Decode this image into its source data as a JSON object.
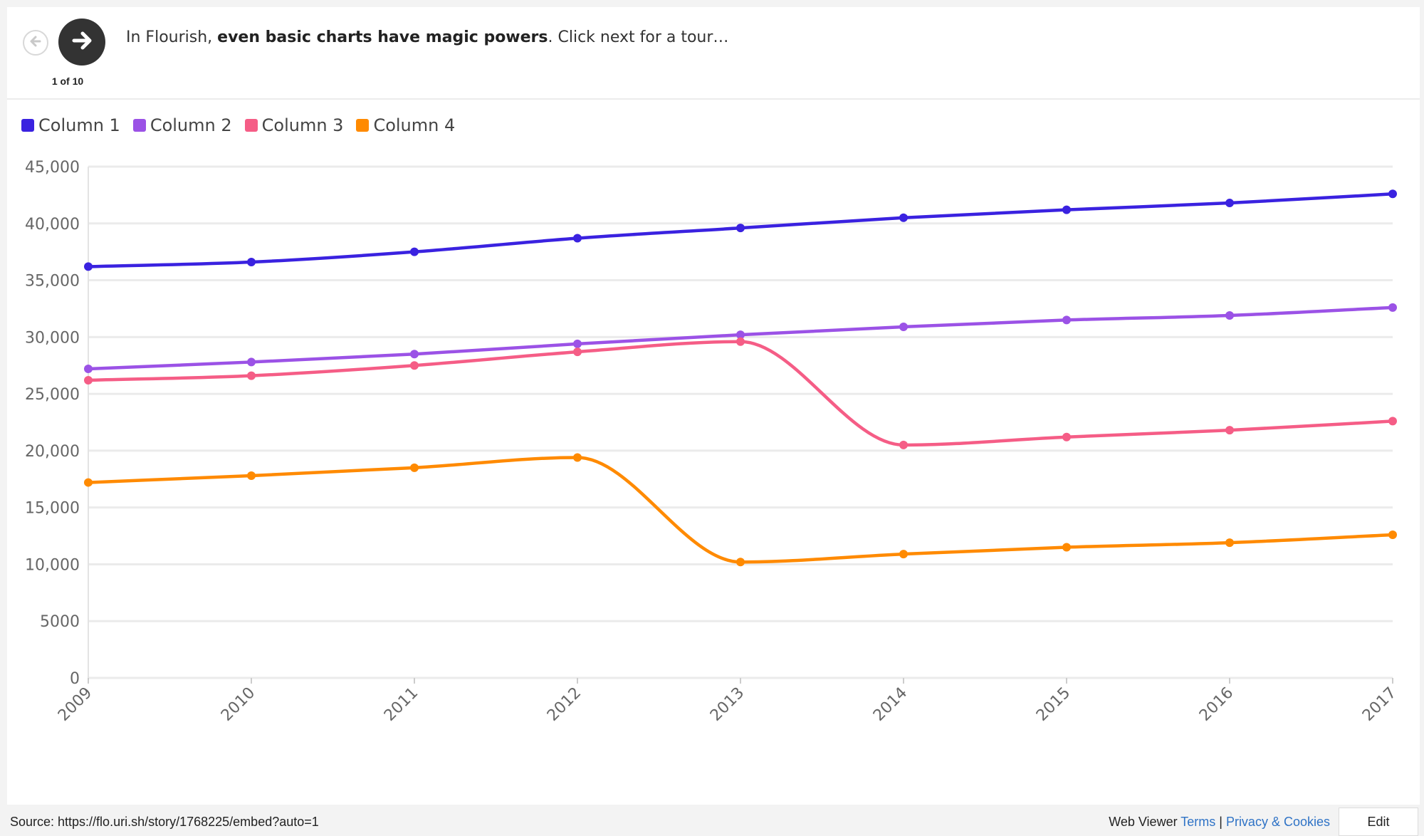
{
  "story": {
    "caption_prefix": "In Flourish, ",
    "caption_bold": "even basic charts have magic powers",
    "caption_suffix": ". Click next for a tour…",
    "counter": "1 of 10",
    "prev_icon": "arrow-left-icon",
    "next_icon": "arrow-right-icon"
  },
  "chart_data": {
    "type": "line",
    "title": "",
    "xlabel": "",
    "ylabel": "",
    "x": [
      "2009",
      "2010",
      "2011",
      "2012",
      "2013",
      "2014",
      "2015",
      "2016",
      "2017"
    ],
    "ylim": [
      0,
      45000
    ],
    "yticks": [
      0,
      5000,
      10000,
      15000,
      20000,
      25000,
      30000,
      35000,
      40000,
      45000
    ],
    "ytick_labels": [
      "0",
      "5000",
      "10,000",
      "15,000",
      "20,000",
      "25,000",
      "30,000",
      "35,000",
      "40,000",
      "45,000"
    ],
    "grid": true,
    "legend_position": "top-left",
    "series": [
      {
        "name": "Column 1",
        "color": "#3a22e0",
        "values": [
          36200,
          36600,
          37500,
          38700,
          39600,
          40500,
          41200,
          41800,
          42600
        ]
      },
      {
        "name": "Column 2",
        "color": "#9b52e6",
        "values": [
          27200,
          27800,
          28500,
          29400,
          30200,
          30900,
          31500,
          31900,
          32600
        ]
      },
      {
        "name": "Column 3",
        "color": "#f55d86",
        "values": [
          26200,
          26600,
          27500,
          28700,
          29600,
          20500,
          21200,
          21800,
          22600
        ]
      },
      {
        "name": "Column 4",
        "color": "#ff8a00",
        "values": [
          17200,
          17800,
          18500,
          19400,
          10200,
          10900,
          11500,
          11900,
          12600
        ]
      }
    ]
  },
  "footer": {
    "source": "Source: https://flo.uri.sh/story/1768225/embed?auto=1",
    "viewer": "Web Viewer ",
    "terms": "Terms",
    "separator": " | ",
    "privacy": "Privacy & Cookies",
    "edit": "Edit"
  }
}
